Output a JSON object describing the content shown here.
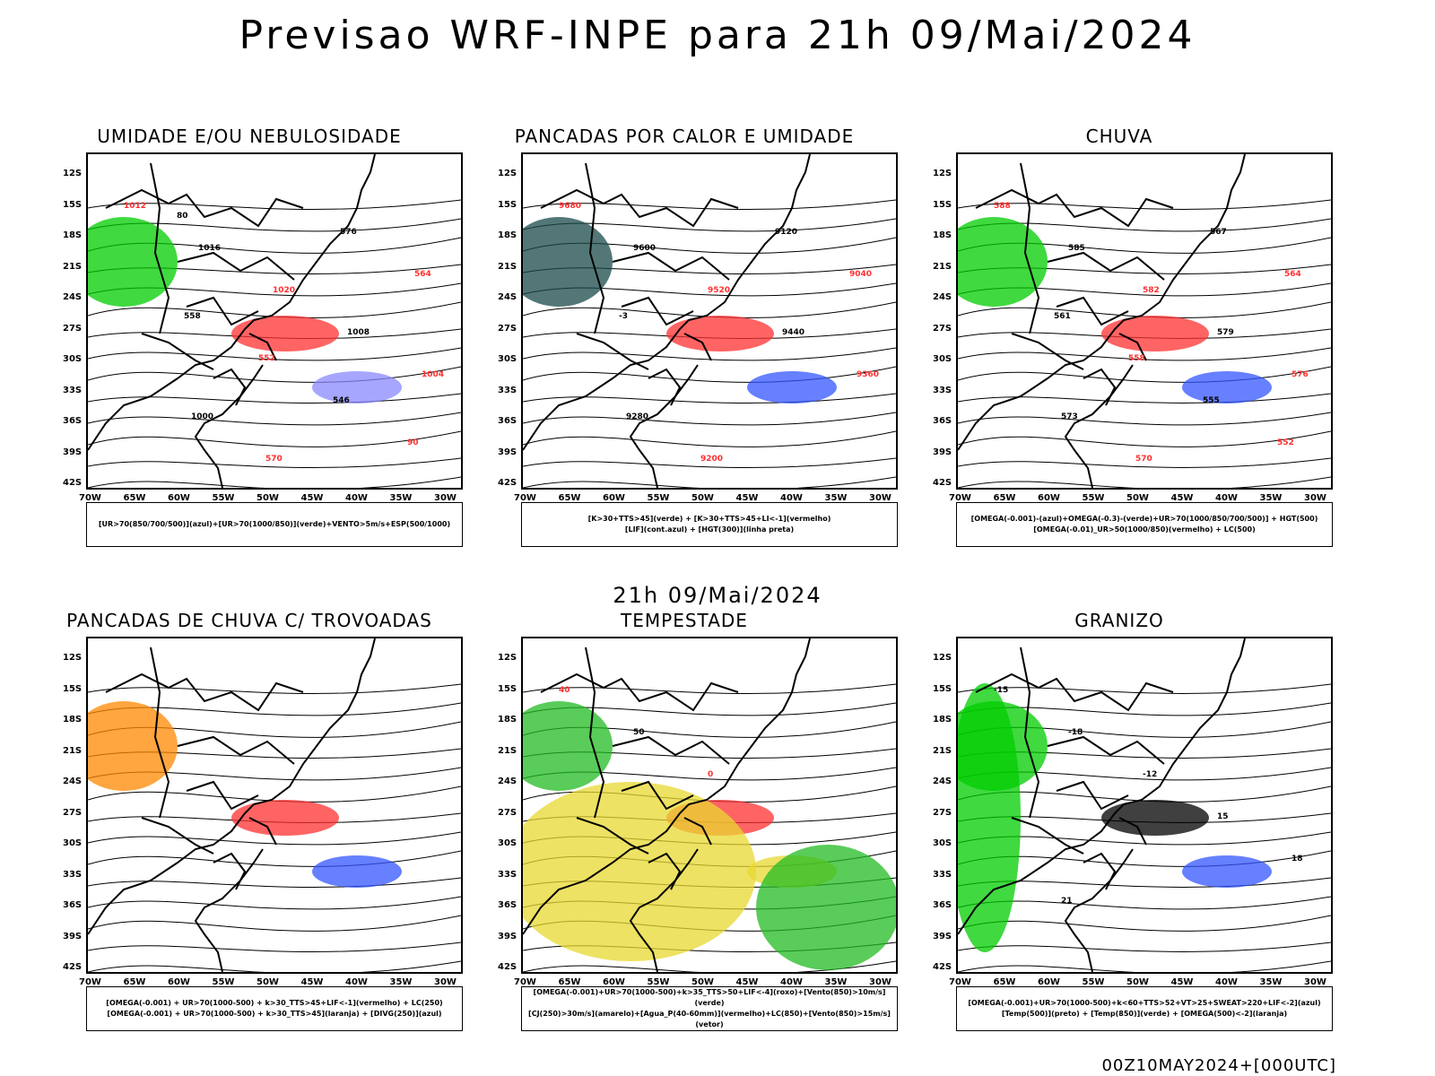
{
  "main_title": "Previsao WRF-INPE  para 21h 09/Mai/2024",
  "sub_title": "21h 09/Mai/2024",
  "footer": "00Z10MAY2024+[000UTC]",
  "lat_labels": [
    "12S",
    "15S",
    "18S",
    "21S",
    "24S",
    "27S",
    "30S",
    "33S",
    "36S",
    "39S",
    "42S"
  ],
  "lon_labels": [
    "70W",
    "65W",
    "60W",
    "55W",
    "50W",
    "45W",
    "40W",
    "35W",
    "30W"
  ],
  "panels": [
    {
      "title": "UMIDADE E/OU NEBULOSIDADE",
      "legend": [
        "[UR>70(850/700/500)](azul)+[UR>70(1000/850)](verde)+VENTO>5m/s+ESP(500/1000)"
      ],
      "contour_labels": [
        "1012",
        "1016",
        "1020",
        "1008",
        "1004",
        "1000",
        "570",
        "576",
        "564",
        "558",
        "552",
        "546",
        "90",
        "80"
      ],
      "colors": {
        "primary": "#ff3030",
        "secondary": "#00cc00",
        "tertiary": "#8888ff"
      }
    },
    {
      "title": "PANCADAS POR CALOR E UMIDADE",
      "legend": [
        "[K>30+TTS>45](verde) + [K>30+TTS>45+LI<-1](vermelho)",
        "[LIF](cont.azul) + [HGT(300)](linha preta)"
      ],
      "contour_labels": [
        "9680",
        "9600",
        "9520",
        "9440",
        "9360",
        "9280",
        "9200",
        "9120",
        "9040",
        "-3"
      ],
      "colors": {
        "primary": "#ff3030",
        "secondary": "#1a4a4a",
        "tertiary": "#3355ff"
      }
    },
    {
      "title": "CHUVA",
      "legend": [
        "[OMEGA(-0.001)-(azul)+OMEGA(-0.3)-(verde)+UR>70(1000/850/700/500)] + HGT(500)",
        "[OMEGA(-0.01)_UR>50(1000/850)(vermelho) + LC(500)"
      ],
      "contour_labels": [
        "588",
        "585",
        "582",
        "579",
        "576",
        "573",
        "570",
        "567",
        "564",
        "561",
        "558",
        "555",
        "552"
      ],
      "colors": {
        "primary": "#ff3030",
        "secondary": "#00cc00",
        "tertiary": "#3355ff"
      }
    },
    {
      "title": "PANCADAS DE CHUVA C/ TROVOADAS",
      "legend": [
        "[OMEGA(-0.001) + UR>70(1000-500) + k>30_TTS>45+LIF<-1](vermelho) + LC(250)",
        "[OMEGA(-0.001) + UR>70(1000-500) + k>30_TTS>45](laranja) + [DIVG(250)](azul)"
      ],
      "contour_labels": [],
      "colors": {
        "primary": "#ff3030",
        "secondary": "#ff8800",
        "tertiary": "#3355ff"
      }
    },
    {
      "title": "TEMPESTADE",
      "legend": [
        "[OMEGA(-0.001)+UR>70(1000-500)+k>35_TTS>50+LIF<-4](roxo)+[Vento(850)>10m/s](verde)",
        "[CJ(250)>30m/s](amarelo)+[Agua_P(40-60mm)](vermelho)+LC(850)+[Vento(850)>15m/s](vetor)"
      ],
      "contour_labels": [
        "40",
        "50",
        "0"
      ],
      "colors": {
        "primary": "#ff3030",
        "secondary": "#22bb22",
        "tertiary": "#e8d830"
      }
    },
    {
      "title": "GRANIZO",
      "legend": [
        "[OMEGA(-0.001)+UR>70(1000-500)+k<60+TTS>52+VT>25+SWEAT>220+LIF<-2](azul)",
        "[Temp(500)](preto) + [Temp(850)](verde) + [OMEGA(500)<-2](laranja)"
      ],
      "contour_labels": [
        "-15",
        "-18",
        "-12",
        "15",
        "18",
        "21"
      ],
      "colors": {
        "primary": "#000000",
        "secondary": "#00cc00",
        "tertiary": "#3355ff"
      }
    }
  ]
}
